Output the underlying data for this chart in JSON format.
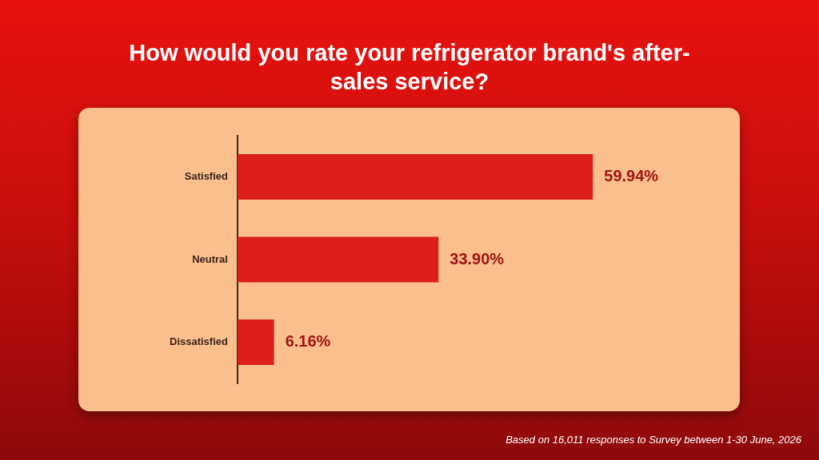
{
  "chart_data": {
    "type": "bar",
    "orientation": "horizontal",
    "title": "How would you rate your refrigerator brand's after-sales service?",
    "categories": [
      "Satisfied",
      "Neutral",
      "Dissatisfied"
    ],
    "values": [
      59.94,
      33.9,
      6.16
    ],
    "value_labels": [
      "59.94%",
      "33.90%",
      "6.16%"
    ],
    "color": "#dc1f1c",
    "legend": false,
    "grid": false,
    "annotations": [
      "Based on 16,011 responses to Survey between 1-30 June, 2026"
    ]
  }
}
